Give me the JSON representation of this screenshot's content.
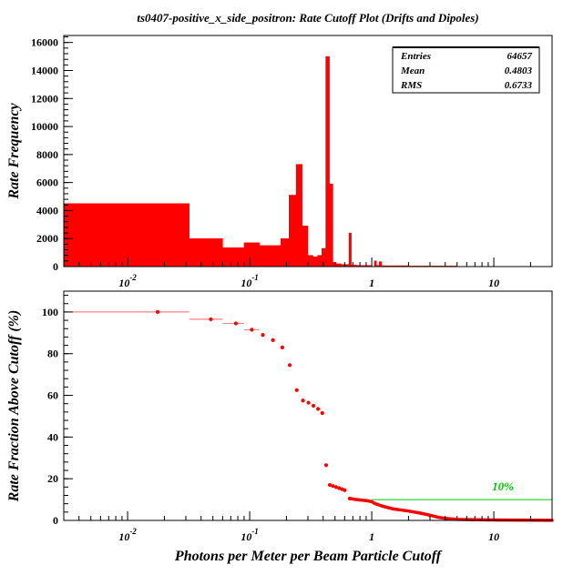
{
  "page": {
    "title": "ts0407-positive_x_side_positron: Rate Cutoff Plot (Drifts and Dipoles)"
  },
  "stats": {
    "rows": [
      {
        "label": "Entries",
        "value": "64657"
      },
      {
        "label": "Mean",
        "value": "0.4803"
      },
      {
        "label": "RMS",
        "value": "0.6733"
      }
    ]
  },
  "colors": {
    "hist_fill": "#ff0000",
    "marker": "#ff0000",
    "threshold_line": "#00cc00",
    "axes": "#000000"
  },
  "chart_data": [
    {
      "type": "bar",
      "subtype": "histogram",
      "title": "ts0407-positive_x_side_positron: Rate Cutoff Plot (Drifts and Dipoles)",
      "xlabel": "",
      "ylabel": "Rate Frequency",
      "xscale": "log",
      "xlim": [
        0.003,
        30
      ],
      "ylim": [
        0,
        16500
      ],
      "yticks": [
        0,
        2000,
        4000,
        6000,
        8000,
        10000,
        12000,
        14000,
        16000
      ],
      "xtick_labels": [
        {
          "value": 0.01,
          "base": "10",
          "exp": "-2"
        },
        {
          "value": 0.1,
          "base": "10",
          "exp": "-1"
        },
        {
          "value": 1,
          "base": "1",
          "exp": ""
        },
        {
          "value": 10,
          "base": "10",
          "exp": ""
        }
      ],
      "bins": [
        {
          "x0": 0.003,
          "x1": 0.032,
          "y": 4500
        },
        {
          "x0": 0.032,
          "x1": 0.06,
          "y": 2000
        },
        {
          "x0": 0.06,
          "x1": 0.09,
          "y": 1350
        },
        {
          "x0": 0.09,
          "x1": 0.12,
          "y": 1700
        },
        {
          "x0": 0.12,
          "x1": 0.18,
          "y": 1500
        },
        {
          "x0": 0.18,
          "x1": 0.21,
          "y": 2000
        },
        {
          "x0": 0.21,
          "x1": 0.24,
          "y": 5100
        },
        {
          "x0": 0.24,
          "x1": 0.27,
          "y": 7300
        },
        {
          "x0": 0.27,
          "x1": 0.3,
          "y": 2900
        },
        {
          "x0": 0.3,
          "x1": 0.33,
          "y": 800
        },
        {
          "x0": 0.33,
          "x1": 0.36,
          "y": 700
        },
        {
          "x0": 0.36,
          "x1": 0.39,
          "y": 800
        },
        {
          "x0": 0.39,
          "x1": 0.42,
          "y": 1300
        },
        {
          "x0": 0.42,
          "x1": 0.45,
          "y": 15000
        },
        {
          "x0": 0.45,
          "x1": 0.48,
          "y": 5900
        },
        {
          "x0": 0.48,
          "x1": 0.51,
          "y": 300
        },
        {
          "x0": 0.51,
          "x1": 0.56,
          "y": 200
        },
        {
          "x0": 0.56,
          "x1": 0.65,
          "y": 150
        },
        {
          "x0": 0.65,
          "x1": 0.68,
          "y": 2400
        },
        {
          "x0": 0.68,
          "x1": 0.75,
          "y": 120
        },
        {
          "x0": 0.75,
          "x1": 1.0,
          "y": 80
        },
        {
          "x0": 1.05,
          "x1": 1.09,
          "y": 400
        },
        {
          "x0": 1.09,
          "x1": 1.15,
          "y": 80
        },
        {
          "x0": 1.15,
          "x1": 1.2,
          "y": 350
        },
        {
          "x0": 1.2,
          "x1": 2.0,
          "y": 60
        },
        {
          "x0": 2.0,
          "x1": 5.0,
          "y": 40
        },
        {
          "x0": 5.0,
          "x1": 30.0,
          "y": 15
        }
      ]
    },
    {
      "type": "scatter",
      "title": "",
      "xlabel": "Photons per Meter per Beam Particle Cutoff",
      "ylabel": "Rate Fraction Above Cutoff (%)",
      "xscale": "log",
      "xlim": [
        0.003,
        30
      ],
      "ylim": [
        0,
        110
      ],
      "yticks": [
        0,
        20,
        40,
        60,
        80,
        100
      ],
      "xtick_labels": [
        {
          "value": 0.01,
          "base": "10",
          "exp": "-2"
        },
        {
          "value": 0.1,
          "base": "10",
          "exp": "-1"
        },
        {
          "value": 1,
          "base": "1",
          "exp": ""
        },
        {
          "value": 10,
          "base": "10",
          "exp": ""
        }
      ],
      "threshold": {
        "y": 10,
        "x_start": 1.0,
        "x_end": 30,
        "label": "10%"
      },
      "points": [
        {
          "x": 0.0176,
          "y": 100,
          "x0": 0.003,
          "x1": 0.032
        },
        {
          "x": 0.048,
          "y": 96.5,
          "x0": 0.032,
          "x1": 0.06
        },
        {
          "x": 0.077,
          "y": 94.5,
          "x0": 0.06,
          "x1": 0.09
        },
        {
          "x": 0.104,
          "y": 91.5,
          "x0": 0.09,
          "x1": 0.12
        },
        {
          "x": 0.128,
          "y": 89
        },
        {
          "x": 0.155,
          "y": 86.5
        },
        {
          "x": 0.185,
          "y": 83
        },
        {
          "x": 0.213,
          "y": 74.5
        },
        {
          "x": 0.243,
          "y": 62.5
        },
        {
          "x": 0.273,
          "y": 57.5
        },
        {
          "x": 0.303,
          "y": 56.5
        },
        {
          "x": 0.333,
          "y": 55
        },
        {
          "x": 0.363,
          "y": 53.5
        },
        {
          "x": 0.393,
          "y": 51.5
        },
        {
          "x": 0.423,
          "y": 26.5
        },
        {
          "x": 0.453,
          "y": 17
        },
        {
          "x": 0.48,
          "y": 16.5
        },
        {
          "x": 0.51,
          "y": 16
        },
        {
          "x": 0.54,
          "y": 15.5
        },
        {
          "x": 0.57,
          "y": 15
        },
        {
          "x": 0.6,
          "y": 14.5
        },
        {
          "x": 0.66,
          "y": 10.5
        }
      ],
      "dense_curve": [
        [
          0.66,
          10.5
        ],
        [
          0.75,
          10
        ],
        [
          0.9,
          9.5
        ],
        [
          1.0,
          9
        ],
        [
          1.05,
          8.2
        ],
        [
          1.2,
          7
        ],
        [
          1.5,
          5.5
        ],
        [
          2.0,
          4.5
        ],
        [
          2.5,
          3.5
        ],
        [
          3.0,
          2.5
        ],
        [
          3.5,
          1.5
        ],
        [
          4.0,
          1.0
        ],
        [
          5.0,
          0.5
        ],
        [
          7.0,
          0.3
        ],
        [
          10,
          0.2
        ],
        [
          20,
          0.1
        ],
        [
          30,
          0.05
        ]
      ]
    }
  ]
}
